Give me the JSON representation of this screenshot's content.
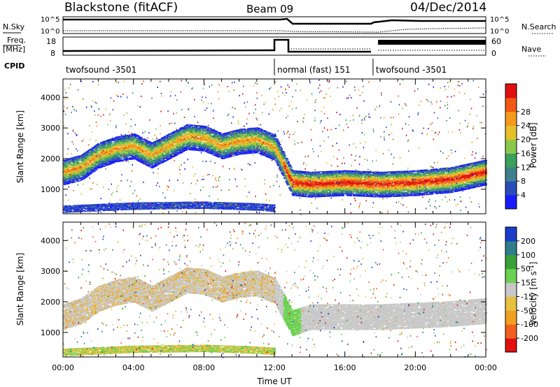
{
  "header": {
    "station": "Blackstone (fitACF)",
    "beam": "Beam 09",
    "date": "04/Dec/2014"
  },
  "top_panels": {
    "nsky_label": "N.Sky",
    "nsearch_label": "N.Search",
    "nsky_ticks": [
      "10^5",
      "10^0"
    ],
    "nsearch_ticks": [
      "10^5",
      "10^0"
    ],
    "freq_label_1": "Freq.",
    "freq_label_2": "[MHz]",
    "freq_ticks": [
      "18",
      "8"
    ],
    "nave_label": "Nave",
    "nave_ticks": [
      "60",
      "0"
    ],
    "cpid_label": "CPID",
    "cpid_segments": [
      {
        "label": "twofsound -3501",
        "start_h": 0,
        "end_h": 12.0
      },
      {
        "label": "normal (fast) 151",
        "start_h": 12.0,
        "end_h": 17.6
      },
      {
        "label": "twofsound -3501",
        "start_h": 17.6,
        "end_h": 24.0
      }
    ]
  },
  "chart_data": [
    {
      "type": "heatmap",
      "name": "power-panel",
      "ylabel": "Slant Range [km]",
      "xlim": [
        0,
        24
      ],
      "ylim": [
        200,
        4600
      ],
      "yticks": [
        1000,
        2000,
        3000,
        4000
      ],
      "ytick_labels": [
        "1000",
        "2000",
        "3000",
        "4000"
      ],
      "colorbar": {
        "label": "Power [dB]",
        "tick_labels": [
          "4",
          "8",
          "12",
          "16",
          "20",
          "24",
          "28"
        ],
        "colors": [
          "#1a1aff",
          "#2a4db8",
          "#3f7f8f",
          "#3aa05a",
          "#8cc84b",
          "#e6c02a",
          "#f59a1e",
          "#f05a14",
          "#e01010"
        ]
      },
      "bands": [
        {
          "points": [
            [
              0,
              1550
            ],
            [
              1,
              1700
            ],
            [
              2,
              2100
            ],
            [
              3,
              2300
            ],
            [
              4,
              2400
            ],
            [
              5,
              2100
            ],
            [
              6,
              2400
            ],
            [
              7,
              2700
            ],
            [
              8,
              2650
            ],
            [
              9,
              2400
            ],
            [
              10,
              2550
            ],
            [
              11,
              2600
            ],
            [
              12,
              2350
            ],
            [
              13,
              1200
            ],
            [
              14,
              1150
            ],
            [
              16,
              1200
            ],
            [
              18,
              1150
            ],
            [
              20,
              1200
            ],
            [
              22,
              1300
            ],
            [
              24,
              1550
            ]
          ]
        },
        {
          "points": [
            [
              0,
              350
            ],
            [
              4,
              450
            ],
            [
              8,
              480
            ],
            [
              11,
              420
            ],
            [
              12,
              380
            ]
          ]
        }
      ]
    },
    {
      "type": "heatmap",
      "name": "velocity-panel",
      "ylabel": "Slant Range [km]",
      "xlabel": "Time UT",
      "xlim": [
        0,
        24
      ],
      "ylim": [
        200,
        4600
      ],
      "yticks": [
        1000,
        2000,
        3000,
        4000
      ],
      "ytick_labels": [
        "1000",
        "2000",
        "3000",
        "4000"
      ],
      "xtick_labels": [
        "00:00",
        "04:00",
        "08:00",
        "12:00",
        "16:00",
        "20:00",
        "00:00"
      ],
      "xtick_hours": [
        0,
        4,
        8,
        12,
        16,
        20,
        24
      ],
      "colorbar": {
        "label": "Velocity [m s^-1]",
        "tick_labels": [
          "200",
          "100",
          "50",
          "15",
          "-15",
          "-50",
          "-100",
          "-200"
        ],
        "colors": [
          "#1a3cc8",
          "#2f7d8a",
          "#3aa03a",
          "#6cd050",
          "#c8c8c8",
          "#e8c040",
          "#f0a020",
          "#f06020",
          "#e01010"
        ]
      },
      "bands": [
        {
          "points": [
            [
              0,
              1500
            ],
            [
              1,
              1700
            ],
            [
              2,
              2100
            ],
            [
              3,
              2300
            ],
            [
              4,
              2400
            ],
            [
              5,
              2100
            ],
            [
              6,
              2400
            ],
            [
              7,
              2700
            ],
            [
              8,
              2650
            ],
            [
              9,
              2400
            ],
            [
              10,
              2550
            ],
            [
              11,
              2600
            ],
            [
              12,
              2350
            ],
            [
              13,
              1300
            ],
            [
              14,
              1500
            ],
            [
              16,
              1500
            ],
            [
              18,
              1500
            ],
            [
              20,
              1550
            ],
            [
              22,
              1600
            ],
            [
              24,
              1700
            ]
          ]
        },
        {
          "points": [
            [
              0,
              350
            ],
            [
              4,
              450
            ],
            [
              8,
              480
            ],
            [
              11,
              420
            ],
            [
              12,
              380
            ]
          ]
        }
      ]
    }
  ]
}
